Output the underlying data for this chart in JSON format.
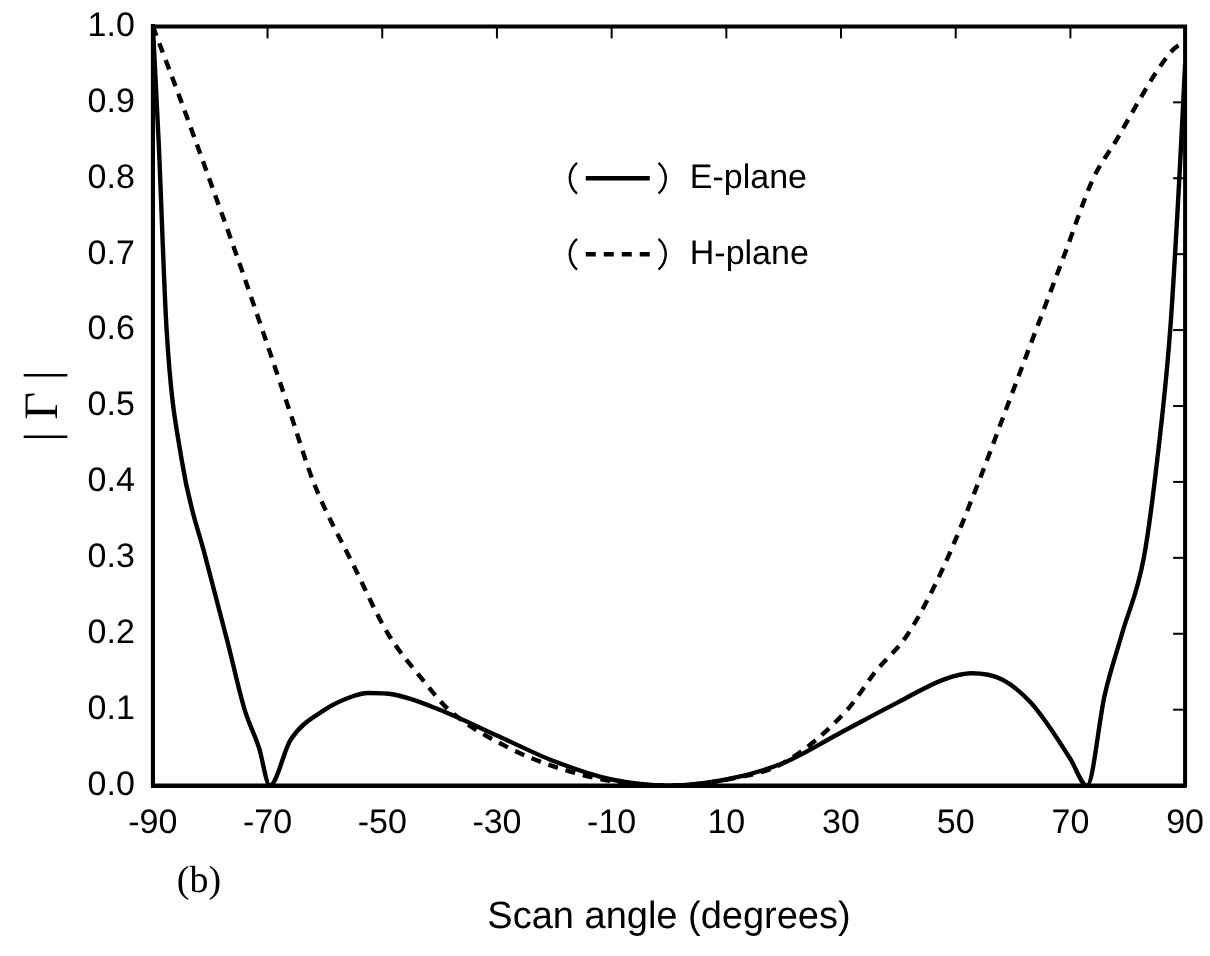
{
  "chart_data": {
    "type": "line",
    "xlabel": "Scan angle (degrees)",
    "ylabel": "| Γ |",
    "annotations": [
      "(b)"
    ],
    "xlim": [
      -90,
      90
    ],
    "xticks": [
      -90,
      -70,
      -50,
      -30,
      -10,
      10,
      30,
      50,
      70,
      90
    ],
    "ylim": [
      0,
      1
    ],
    "yticks": [
      {
        "value": 0,
        "label": "0.0"
      },
      0.1,
      0.2,
      0.3,
      0.4,
      0.5,
      0.6,
      0.7,
      0.8,
      0.9,
      {
        "value": 1,
        "label": "1.0"
      }
    ],
    "grid": false,
    "legend": "top",
    "marker": "none",
    "series": [
      {
        "name": "E-plane",
        "color": "#000000",
        "line_style": "solid",
        "x": [
          -90,
          -89,
          -87.6,
          -85,
          -80.8,
          -77,
          -74,
          -71.5,
          -69.6,
          -66,
          -60,
          -55,
          -52.5,
          -48,
          -40,
          -30,
          -20,
          -10,
          0,
          10,
          20,
          30,
          40,
          48,
          52.8,
          58,
          63,
          67,
          70,
          72.9,
          76,
          79,
          82.8,
          85,
          87.4,
          89,
          90
        ],
        "values": [
          1,
          0.85,
          0.6,
          0.43,
          0.3,
          0.19,
          0.1,
          0.05,
          0,
          0.06,
          0.1,
          0.118,
          0.122,
          0.12,
          0.1,
          0.066,
          0.032,
          0.008,
          0,
          0.008,
          0.03,
          0.07,
          0.11,
          0.14,
          0.148,
          0.14,
          0.11,
          0.07,
          0.035,
          0,
          0.12,
          0.2,
          0.3,
          0.42,
          0.6,
          0.8,
          0.95
        ]
      },
      {
        "name": "H-plane",
        "color": "#000000",
        "line_style": "dashed",
        "x": [
          -90,
          -85,
          -80.2,
          -75,
          -70.9,
          -66,
          -62,
          -55,
          -49,
          -43,
          -38.4,
          -28,
          -20,
          -10,
          0,
          10,
          20,
          31.1,
          36,
          41.7,
          48,
          54,
          59,
          64,
          69,
          74,
          78,
          81.8,
          85,
          88,
          90
        ],
        "values": [
          1,
          0.9,
          0.8,
          0.69,
          0.6,
          0.49,
          0.4,
          0.29,
          0.2,
          0.14,
          0.1,
          0.05,
          0.025,
          0.006,
          0,
          0.008,
          0.03,
          0.1,
          0.15,
          0.2,
          0.29,
          0.4,
          0.5,
          0.6,
          0.7,
          0.8,
          0.85,
          0.9,
          0.94,
          0.97,
          0.98
        ]
      }
    ]
  }
}
